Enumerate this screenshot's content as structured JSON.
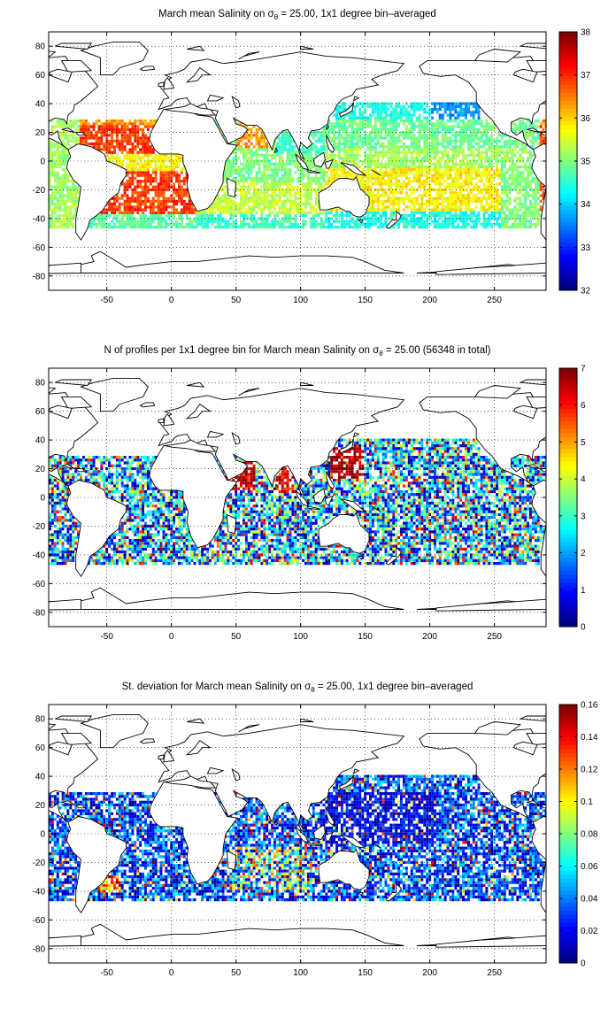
{
  "figure": {
    "x_ticks": [
      "-50",
      "0",
      "50",
      "100",
      "150",
      "200",
      "250"
    ],
    "y_ticks": [
      "80",
      "60",
      "40",
      "20",
      "0",
      "-20",
      "-40",
      "-60",
      "-80"
    ]
  },
  "chart_data": [
    {
      "type": "heatmap",
      "title_pre": "March mean Salinity on ",
      "title_sym": "σ",
      "title_sub": "θ",
      "title_post": " = 25.00, 1x1 degree bin–averaged",
      "xlim": [
        -95,
        290
      ],
      "ylim": [
        -90,
        90
      ],
      "x_ticks": [
        -50,
        0,
        50,
        100,
        150,
        200,
        250
      ],
      "y_ticks": [
        -80,
        -60,
        -40,
        -20,
        0,
        20,
        40,
        60,
        80
      ],
      "grid": true,
      "colormap": "jet",
      "colorbar": {
        "min": 32,
        "max": 38,
        "ticks": [
          "32",
          "33",
          "34",
          "35",
          "36",
          "37",
          "38"
        ]
      },
      "approx_regional_values": [
        {
          "region": "North Atlantic subtropics (x -60..-15, y 10..28)",
          "value": 37.2
        },
        {
          "region": "South Atlantic subtropics (x -40..0, y -30..-10)",
          "value": 37.0
        },
        {
          "region": "Arabian Sea (x 55..70, y 10..25)",
          "value": 36.5
        },
        {
          "region": "Indian Ocean (x 40..120, y -40..5)",
          "value": 35.0
        },
        {
          "region": "Western North Pacific (x 120..200, y 10..30)",
          "value": 34.8
        },
        {
          "region": "South Pacific subtropics (x 150..260, y -30..-10)",
          "value": 35.8
        },
        {
          "region": "Northeast Pacific (x 210..240, y 25..40)",
          "value": 33.5
        },
        {
          "region": "Southern band (y -45..-38)",
          "value": 34.2
        }
      ]
    },
    {
      "type": "heatmap",
      "title_pre": "N of profiles per 1x1 degree bin for March mean Salinity on ",
      "title_sym": "σ",
      "title_sub": "θ",
      "title_post": " = 25.00 (56348 in total)",
      "xlim": [
        -95,
        290
      ],
      "ylim": [
        -90,
        90
      ],
      "x_ticks": [
        -50,
        0,
        50,
        100,
        150,
        200,
        250
      ],
      "y_ticks": [
        -80,
        -60,
        -40,
        -20,
        0,
        20,
        40,
        60,
        80
      ],
      "grid": true,
      "colormap": "jet",
      "colorbar": {
        "min": 0,
        "max": 7,
        "ticks": [
          "0",
          "1",
          "2",
          "3",
          "4",
          "5",
          "6",
          "7"
        ]
      },
      "approx_regional_values": [
        {
          "region": "Kuroshio / east of Japan (x 125..150, y 15..35)",
          "value": 7
        },
        {
          "region": "Red Sea / Arabian Sea (x 40..65, y 5..25)",
          "value": 7
        },
        {
          "region": "Bay of Bengal (x 80..95, y 5..20)",
          "value": 6
        },
        {
          "region": "Open ocean typical",
          "value": 3
        }
      ]
    },
    {
      "type": "heatmap",
      "title_pre": "St. deviation for March mean Salinity on ",
      "title_sym": "σ",
      "title_sub": "θ",
      "title_post": " = 25.00, 1x1 degree bin–averaged",
      "xlim": [
        -95,
        290
      ],
      "ylim": [
        -90,
        90
      ],
      "x_ticks": [
        -50,
        0,
        50,
        100,
        150,
        200,
        250
      ],
      "y_ticks": [
        -80,
        -60,
        -40,
        -20,
        0,
        20,
        40,
        60,
        80
      ],
      "grid": true,
      "colormap": "jet",
      "colorbar": {
        "min": 0,
        "max": 0.16,
        "ticks": [
          "0",
          "0.02",
          "0.04",
          "0.06",
          "0.08",
          "0.1",
          "0.12",
          "0.14",
          "0.16"
        ]
      },
      "approx_regional_values": [
        {
          "region": "Western Pacific (x 120..200, y -10..30)",
          "value": 0.02
        },
        {
          "region": "Indian Ocean (x 50..110, y -30..-10)",
          "value": 0.08
        },
        {
          "region": "Brazil–Malvinas (x -55..-40, y -40..-30)",
          "value": 0.15
        },
        {
          "region": "Open ocean typical",
          "value": 0.04
        }
      ]
    }
  ]
}
